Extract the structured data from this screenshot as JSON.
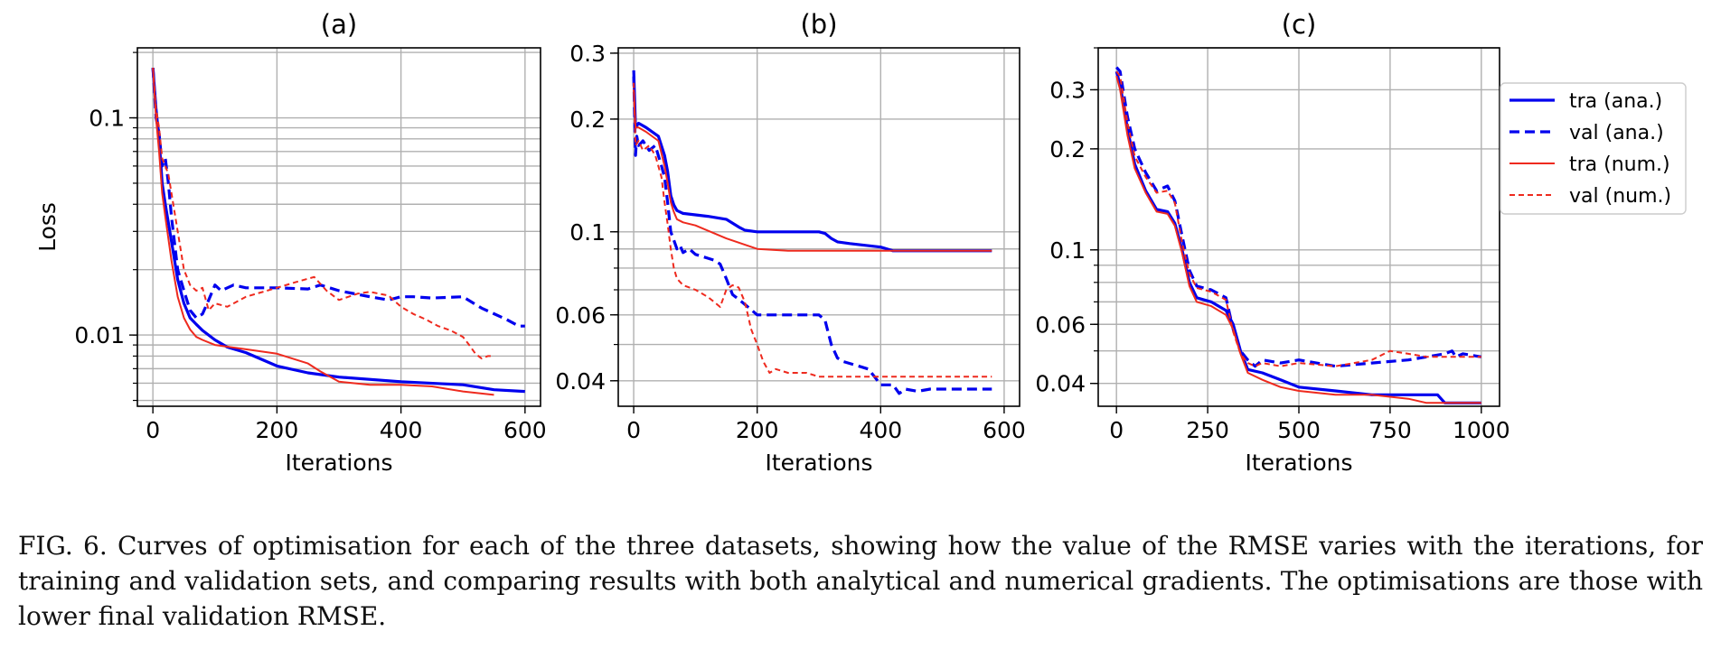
{
  "caption": "FIG. 6. Curves of optimisation for each of the three datasets, showing how the value of the RMSE varies with the iterations, for training and validation sets, and comparing results with both analytical and numerical gradients. The optimisations are those with lower final validation RMSE.",
  "legend": {
    "placement": "right of panel (c)",
    "entries": [
      {
        "label": "tra (ana.)",
        "color": "#0000ee",
        "style": "solid-thick"
      },
      {
        "label": "val (ana.)",
        "color": "#0000ee",
        "style": "dashed-thick"
      },
      {
        "label": "tra (num.)",
        "color": "#ee2a1e",
        "style": "solid-thin"
      },
      {
        "label": "val (num.)",
        "color": "#ee2a1e",
        "style": "dashed-thin"
      }
    ]
  },
  "chart_data": [
    {
      "type": "line",
      "title": "(a)",
      "xlabel": "Iterations",
      "ylabel": "Loss",
      "yscale": "log",
      "xlim": [
        -25,
        625
      ],
      "ylim": [
        0.0047,
        0.21
      ],
      "xticks": [
        0,
        200,
        400,
        600
      ],
      "xtick_labels": [
        "0",
        "200",
        "400",
        "600"
      ],
      "yticks": [
        0.01,
        0.1
      ],
      "ytick_labels": [
        "0.01",
        "0.1"
      ],
      "grid": true,
      "series": [
        {
          "name": "tra (ana.)",
          "x": [
            0,
            5,
            10,
            15,
            20,
            30,
            40,
            50,
            60,
            70,
            80,
            100,
            120,
            150,
            200,
            250,
            300,
            400,
            500,
            550,
            600
          ],
          "y": [
            0.17,
            0.11,
            0.08,
            0.05,
            0.04,
            0.027,
            0.018,
            0.014,
            0.012,
            0.0112,
            0.0105,
            0.0095,
            0.0088,
            0.0083,
            0.0072,
            0.0067,
            0.0064,
            0.0061,
            0.0059,
            0.0056,
            0.0055
          ]
        },
        {
          "name": "val (ana.)",
          "x": [
            0,
            5,
            10,
            15,
            20,
            25,
            30,
            40,
            50,
            60,
            70,
            80,
            90,
            100,
            110,
            130,
            150,
            180,
            200,
            250,
            270,
            300,
            350,
            380,
            400,
            420,
            450,
            500,
            530,
            570,
            590,
            600
          ],
          "y": [
            0.17,
            0.1,
            0.085,
            0.06,
            0.065,
            0.05,
            0.035,
            0.02,
            0.016,
            0.013,
            0.012,
            0.0125,
            0.0145,
            0.017,
            0.016,
            0.017,
            0.0165,
            0.0165,
            0.0165,
            0.0163,
            0.017,
            0.016,
            0.015,
            0.0145,
            0.015,
            0.015,
            0.0148,
            0.015,
            0.0133,
            0.0118,
            0.011,
            0.011
          ]
        },
        {
          "name": "tra (num.)",
          "x": [
            0,
            5,
            10,
            15,
            20,
            30,
            40,
            50,
            60,
            70,
            80,
            100,
            150,
            200,
            250,
            270,
            300,
            350,
            400,
            450,
            500,
            550
          ],
          "y": [
            0.17,
            0.1,
            0.07,
            0.045,
            0.035,
            0.022,
            0.015,
            0.012,
            0.0106,
            0.0098,
            0.0095,
            0.009,
            0.0086,
            0.0082,
            0.0074,
            0.0068,
            0.0061,
            0.0059,
            0.0059,
            0.0058,
            0.0055,
            0.0053
          ]
        },
        {
          "name": "val (num.)",
          "x": [
            0,
            5,
            10,
            15,
            20,
            25,
            30,
            40,
            50,
            60,
            70,
            80,
            90,
            100,
            120,
            150,
            200,
            230,
            260,
            280,
            300,
            330,
            350,
            380,
            400,
            420,
            440,
            460,
            480,
            500,
            510,
            520,
            530,
            540,
            550
          ],
          "y": [
            0.17,
            0.11,
            0.09,
            0.065,
            0.06,
            0.055,
            0.045,
            0.03,
            0.02,
            0.017,
            0.016,
            0.0165,
            0.013,
            0.014,
            0.0135,
            0.015,
            0.0165,
            0.0175,
            0.0185,
            0.016,
            0.0145,
            0.0155,
            0.0158,
            0.0152,
            0.0135,
            0.0125,
            0.0118,
            0.011,
            0.0105,
            0.0098,
            0.009,
            0.0082,
            0.0078,
            0.008,
            0.008
          ]
        }
      ]
    },
    {
      "type": "line",
      "title": "(b)",
      "xlabel": "Iterations",
      "ylabel": "",
      "yscale": "log",
      "xlim": [
        -25,
        625
      ],
      "ylim": [
        0.0342,
        0.31
      ],
      "xticks": [
        0,
        200,
        400,
        600
      ],
      "xtick_labels": [
        "0",
        "200",
        "400",
        "600"
      ],
      "yticks": [
        0.04,
        0.06,
        0.1,
        0.2,
        0.3
      ],
      "ytick_labels": [
        "0.04",
        "0.06",
        "0.1",
        "0.2",
        "0.3"
      ],
      "grid": true,
      "series": [
        {
          "name": "tra (ana.)",
          "x": [
            0,
            3,
            8,
            20,
            40,
            50,
            55,
            60,
            65,
            70,
            80,
            100,
            120,
            150,
            170,
            180,
            200,
            250,
            300,
            310,
            320,
            330,
            350,
            400,
            420,
            450,
            500,
            550,
            580
          ],
          "y": [
            0.27,
            0.19,
            0.195,
            0.19,
            0.18,
            0.16,
            0.145,
            0.125,
            0.118,
            0.114,
            0.112,
            0.111,
            0.11,
            0.108,
            0.103,
            0.101,
            0.1,
            0.1,
            0.1,
            0.099,
            0.096,
            0.094,
            0.093,
            0.091,
            0.089,
            0.089,
            0.089,
            0.089,
            0.089
          ]
        },
        {
          "name": "val (ana.)",
          "x": [
            0,
            3,
            5,
            8,
            15,
            25,
            35,
            45,
            50,
            55,
            60,
            65,
            70,
            75,
            80,
            90,
            100,
            110,
            120,
            130,
            140,
            150,
            160,
            180,
            200,
            250,
            300,
            310,
            320,
            330,
            340,
            360,
            380,
            390,
            400,
            420,
            430,
            440,
            460,
            480,
            500,
            550,
            580
          ],
          "y": [
            0.26,
            0.16,
            0.18,
            0.17,
            0.175,
            0.165,
            0.17,
            0.15,
            0.14,
            0.12,
            0.1,
            0.095,
            0.09,
            0.092,
            0.088,
            0.09,
            0.087,
            0.086,
            0.085,
            0.084,
            0.082,
            0.075,
            0.068,
            0.064,
            0.06,
            0.06,
            0.06,
            0.058,
            0.05,
            0.046,
            0.045,
            0.044,
            0.043,
            0.041,
            0.039,
            0.039,
            0.037,
            0.038,
            0.0375,
            0.038,
            0.038,
            0.038,
            0.038
          ]
        },
        {
          "name": "tra (num.)",
          "x": [
            0,
            3,
            8,
            20,
            40,
            50,
            55,
            60,
            65,
            70,
            80,
            100,
            150,
            200,
            250,
            300,
            400,
            500,
            580
          ],
          "y": [
            0.24,
            0.19,
            0.19,
            0.185,
            0.175,
            0.15,
            0.135,
            0.12,
            0.113,
            0.108,
            0.106,
            0.104,
            0.096,
            0.09,
            0.089,
            0.089,
            0.089,
            0.089,
            0.089
          ]
        },
        {
          "name": "val (num.)",
          "x": [
            0,
            3,
            8,
            15,
            25,
            35,
            45,
            50,
            55,
            60,
            65,
            70,
            80,
            100,
            120,
            130,
            140,
            150,
            160,
            170,
            180,
            185,
            190,
            200,
            210,
            220,
            230,
            250,
            280,
            300,
            350,
            400,
            450,
            500,
            580
          ],
          "y": [
            0.25,
            0.17,
            0.175,
            0.165,
            0.17,
            0.16,
            0.14,
            0.12,
            0.105,
            0.09,
            0.08,
            0.075,
            0.072,
            0.07,
            0.067,
            0.065,
            0.063,
            0.07,
            0.072,
            0.071,
            0.065,
            0.06,
            0.055,
            0.05,
            0.045,
            0.042,
            0.043,
            0.042,
            0.042,
            0.041,
            0.041,
            0.041,
            0.041,
            0.041,
            0.041
          ]
        }
      ]
    },
    {
      "type": "line",
      "title": "(c)",
      "xlabel": "Iterations",
      "ylabel": "",
      "yscale": "log",
      "xlim": [
        -50,
        1050
      ],
      "ylim": [
        0.0342,
        0.4
      ],
      "xticks": [
        0,
        250,
        500,
        750,
        1000
      ],
      "xtick_labels": [
        "0",
        "250",
        "500",
        "750",
        "1000"
      ],
      "yticks": [
        0.04,
        0.06,
        0.1,
        0.2,
        0.3
      ],
      "ytick_labels": [
        "0.04",
        "0.06",
        "0.1",
        "0.2",
        "0.3"
      ],
      "grid": true,
      "series": [
        {
          "name": "tra (ana.)",
          "x": [
            0,
            10,
            30,
            50,
            80,
            110,
            140,
            160,
            180,
            200,
            220,
            260,
            300,
            320,
            340,
            360,
            400,
            450,
            500,
            600,
            700,
            800,
            880,
            900,
            1000
          ],
          "y": [
            0.34,
            0.31,
            0.23,
            0.18,
            0.15,
            0.132,
            0.13,
            0.12,
            0.1,
            0.08,
            0.072,
            0.07,
            0.066,
            0.06,
            0.05,
            0.044,
            0.043,
            0.041,
            0.039,
            0.038,
            0.037,
            0.037,
            0.037,
            0.035,
            0.035
          ]
        },
        {
          "name": "val (ana.)",
          "x": [
            0,
            10,
            30,
            50,
            80,
            110,
            140,
            160,
            180,
            200,
            220,
            260,
            300,
            320,
            340,
            360,
            380,
            400,
            450,
            500,
            600,
            700,
            800,
            900,
            920,
            930,
            950,
            1000
          ],
          "y": [
            0.35,
            0.34,
            0.25,
            0.2,
            0.17,
            0.15,
            0.155,
            0.14,
            0.11,
            0.087,
            0.078,
            0.076,
            0.072,
            0.058,
            0.05,
            0.047,
            0.045,
            0.047,
            0.046,
            0.047,
            0.045,
            0.046,
            0.047,
            0.049,
            0.05,
            0.048,
            0.049,
            0.048
          ]
        },
        {
          "name": "tra (num.)",
          "x": [
            0,
            10,
            30,
            50,
            80,
            110,
            140,
            160,
            180,
            200,
            220,
            260,
            300,
            320,
            340,
            360,
            400,
            450,
            500,
            600,
            700,
            800,
            850,
            900,
            1000
          ],
          "y": [
            0.33,
            0.3,
            0.22,
            0.175,
            0.148,
            0.13,
            0.128,
            0.118,
            0.098,
            0.078,
            0.07,
            0.068,
            0.064,
            0.058,
            0.049,
            0.043,
            0.041,
            0.039,
            0.038,
            0.037,
            0.037,
            0.036,
            0.035,
            0.035,
            0.035
          ]
        },
        {
          "name": "val (num.)",
          "x": [
            0,
            10,
            30,
            50,
            80,
            110,
            140,
            160,
            180,
            200,
            220,
            260,
            300,
            320,
            340,
            360,
            380,
            400,
            450,
            500,
            600,
            700,
            750,
            800,
            850,
            900,
            1000
          ],
          "y": [
            0.34,
            0.33,
            0.24,
            0.19,
            0.165,
            0.148,
            0.15,
            0.138,
            0.105,
            0.085,
            0.077,
            0.075,
            0.071,
            0.057,
            0.049,
            0.046,
            0.045,
            0.046,
            0.045,
            0.046,
            0.045,
            0.047,
            0.05,
            0.049,
            0.048,
            0.048,
            0.048
          ]
        }
      ]
    }
  ]
}
